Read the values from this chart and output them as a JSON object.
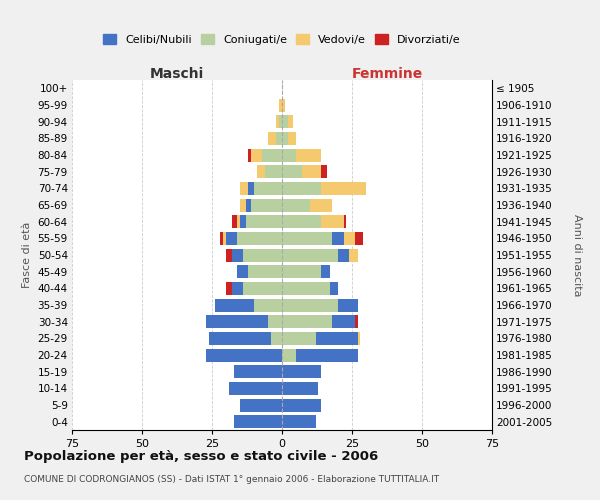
{
  "age_groups": [
    "0-4",
    "5-9",
    "10-14",
    "15-19",
    "20-24",
    "25-29",
    "30-34",
    "35-39",
    "40-44",
    "45-49",
    "50-54",
    "55-59",
    "60-64",
    "65-69",
    "70-74",
    "75-79",
    "80-84",
    "85-89",
    "90-94",
    "95-99",
    "100+"
  ],
  "birth_years": [
    "2001-2005",
    "1996-2000",
    "1991-1995",
    "1986-1990",
    "1981-1985",
    "1976-1980",
    "1971-1975",
    "1966-1970",
    "1961-1965",
    "1956-1960",
    "1951-1955",
    "1946-1950",
    "1941-1945",
    "1936-1940",
    "1931-1935",
    "1926-1930",
    "1921-1925",
    "1916-1920",
    "1911-1915",
    "1906-1910",
    "≤ 1905"
  ],
  "male": {
    "celibi": [
      17,
      15,
      19,
      17,
      27,
      22,
      22,
      14,
      4,
      4,
      4,
      4,
      2,
      2,
      2,
      0,
      0,
      0,
      0,
      0,
      0
    ],
    "coniugati": [
      0,
      0,
      0,
      0,
      0,
      4,
      5,
      10,
      14,
      12,
      14,
      16,
      13,
      11,
      10,
      6,
      7,
      2,
      1,
      0,
      0
    ],
    "vedovi": [
      0,
      0,
      0,
      0,
      0,
      0,
      0,
      0,
      0,
      0,
      0,
      1,
      1,
      2,
      3,
      3,
      4,
      3,
      1,
      1,
      0
    ],
    "divorziati": [
      0,
      0,
      0,
      0,
      0,
      0,
      0,
      0,
      2,
      0,
      2,
      1,
      2,
      0,
      0,
      0,
      1,
      0,
      0,
      0,
      0
    ]
  },
  "female": {
    "nubili": [
      12,
      14,
      13,
      14,
      22,
      15,
      8,
      7,
      3,
      3,
      4,
      4,
      0,
      0,
      0,
      0,
      0,
      0,
      0,
      0,
      0
    ],
    "coniugate": [
      0,
      0,
      0,
      0,
      5,
      12,
      18,
      20,
      17,
      14,
      20,
      18,
      14,
      10,
      14,
      7,
      5,
      2,
      2,
      0,
      0
    ],
    "vedove": [
      0,
      0,
      0,
      0,
      0,
      1,
      0,
      0,
      0,
      0,
      3,
      4,
      8,
      8,
      16,
      7,
      9,
      3,
      2,
      1,
      0
    ],
    "divorziate": [
      0,
      0,
      0,
      0,
      0,
      0,
      1,
      0,
      0,
      0,
      0,
      3,
      1,
      0,
      0,
      2,
      0,
      0,
      0,
      0,
      0
    ]
  },
  "colors": {
    "celibi_nubili": "#4472c4",
    "coniugati": "#b8cfa0",
    "vedovi": "#f5c96e",
    "divorziati": "#cc2222"
  },
  "xlim": 75,
  "title": "Popolazione per età, sesso e stato civile - 2006",
  "subtitle": "COMUNE DI CODRONGIANOS (SS) - Dati ISTAT 1° gennaio 2006 - Elaborazione TUTTITALIA.IT",
  "ylabel_left": "Fasce di età",
  "ylabel_right": "Anni di nascita",
  "xlabel_maschi": "Maschi",
  "xlabel_femmine": "Femmine",
  "bg_color": "#f0f0f0",
  "plot_bg_color": "#ffffff"
}
